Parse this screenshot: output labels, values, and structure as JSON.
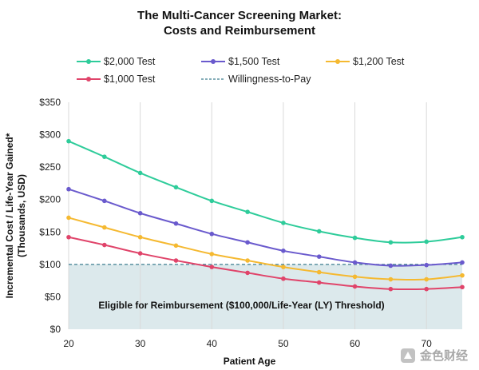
{
  "chart_data": {
    "type": "line",
    "title_line1": "The Multi-Cancer Screening Market:",
    "title_line2": "Costs and Reimbursement",
    "xlabel": "Patient Age",
    "ylabel_line1": "Incremental Cost / Life-Year Gained*",
    "ylabel_line2": "(Thousands, USD)",
    "xlim": [
      20,
      75
    ],
    "ylim": [
      0,
      350
    ],
    "x_ticks": [
      20,
      30,
      40,
      50,
      60,
      70
    ],
    "x_tick_labels": [
      "20",
      "30",
      "40",
      "50",
      "60",
      "70"
    ],
    "y_ticks": [
      0,
      50,
      100,
      150,
      200,
      250,
      300,
      350
    ],
    "y_tick_labels": [
      "$0",
      "$50",
      "$100",
      "$150",
      "$200",
      "$250",
      "$300",
      "$350"
    ],
    "grid": "vertical",
    "legend_position": "top",
    "x": [
      20,
      25,
      30,
      35,
      40,
      45,
      50,
      55,
      60,
      65,
      70,
      75
    ],
    "series": [
      {
        "name": "$2,000 Test",
        "color": "#2ecc9a",
        "values": [
          290,
          266,
          241,
          219,
          198,
          181,
          164,
          151,
          141,
          134,
          135,
          142
        ]
      },
      {
        "name": "$1,500 Test",
        "color": "#6a5acd",
        "values": [
          216,
          198,
          179,
          163,
          147,
          134,
          121,
          112,
          103,
          98,
          99,
          103
        ]
      },
      {
        "name": "$1,200 Test",
        "color": "#f5b931",
        "values": [
          172,
          157,
          142,
          129,
          116,
          106,
          96,
          88,
          81,
          77,
          77,
          83
        ]
      },
      {
        "name": "$1,000 Test",
        "color": "#e0446a",
        "values": [
          142,
          130,
          117,
          106,
          96,
          87,
          78,
          72,
          66,
          62,
          62,
          65
        ]
      }
    ],
    "threshold": {
      "name": "Willingness-to-Pay",
      "value": 100,
      "color": "#3d7d8f"
    },
    "region": {
      "label": "Eligible for Reimbursement ($100,000/Life-Year (LY) Threshold)",
      "from": 0,
      "to": 100,
      "color": "#dce9ec"
    }
  },
  "watermark": {
    "text": "金色财经"
  }
}
